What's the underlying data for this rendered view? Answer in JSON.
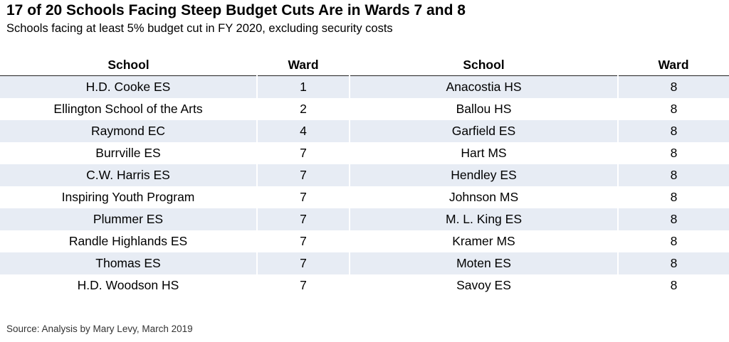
{
  "title": "17 of 20 Schools Facing Steep Budget Cuts Are in Wards 7 and 8",
  "subtitle": "Schools facing at least 5% budget cut in FY 2020, excluding security costs",
  "source": "Source: Analysis by Mary Levy, March 2019",
  "colors": {
    "stripe": "#e7ecf4",
    "header_rule": "#222222"
  },
  "chart_data": {
    "type": "table",
    "columns": [
      "School",
      "Ward",
      "School",
      "Ward"
    ],
    "rows": [
      [
        "H.D. Cooke ES",
        "1",
        "Anacostia HS",
        "8"
      ],
      [
        "Ellington School of the Arts",
        "2",
        "Ballou HS",
        "8"
      ],
      [
        "Raymond EC",
        "4",
        "Garfield ES",
        "8"
      ],
      [
        "Burrville ES",
        "7",
        "Hart MS",
        "8"
      ],
      [
        "C.W. Harris ES",
        "7",
        "Hendley ES",
        "8"
      ],
      [
        "Inspiring Youth Program",
        "7",
        "Johnson MS",
        "8"
      ],
      [
        "Plummer ES",
        "7",
        "M. L. King ES",
        "8"
      ],
      [
        "Randle Highlands ES",
        "7",
        "Kramer MS",
        "8"
      ],
      [
        "Thomas ES",
        "7",
        "Moten ES",
        "8"
      ],
      [
        "H.D. Woodson HS",
        "7",
        "Savoy ES",
        "8"
      ]
    ]
  }
}
